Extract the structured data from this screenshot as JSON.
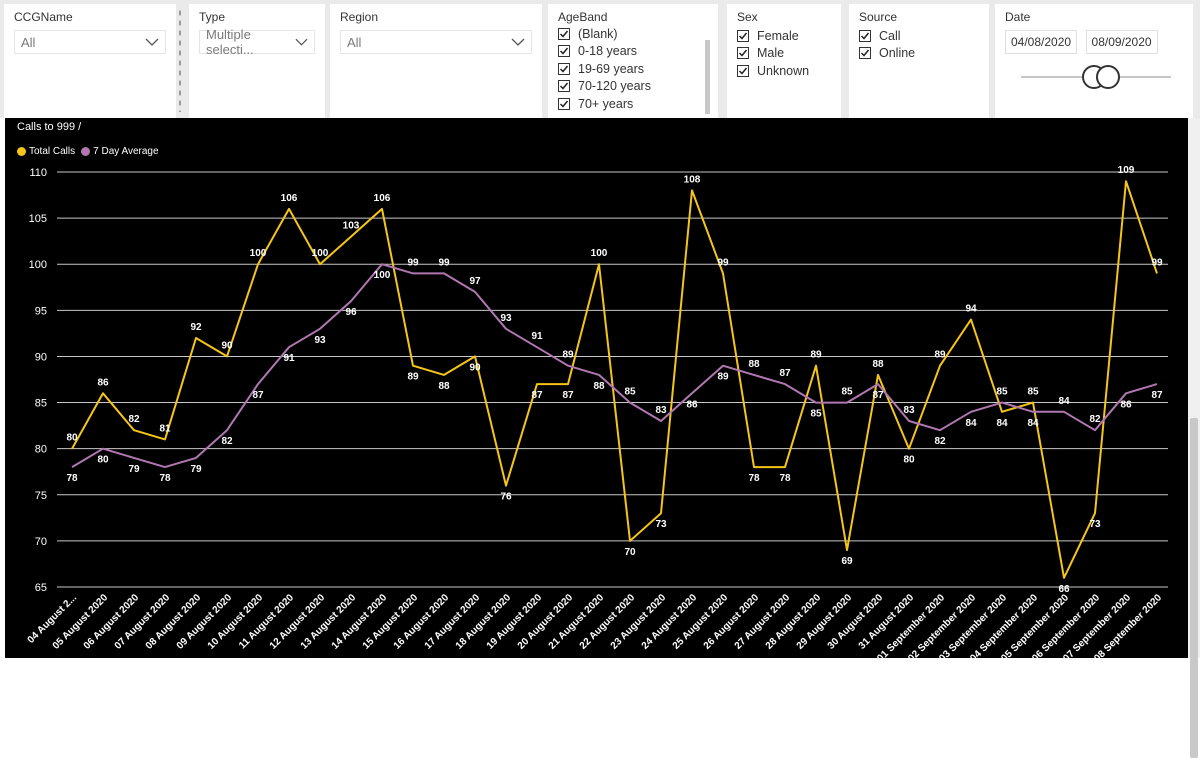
{
  "slicers": {
    "ccg": {
      "title": "CCGName",
      "value": "All"
    },
    "type": {
      "title": "Type",
      "value": "Multiple selecti..."
    },
    "region": {
      "title": "Region",
      "value": "All"
    },
    "ageband": {
      "title": "AgeBand",
      "items": [
        "(Blank)",
        "0-18 years",
        "19-69 years",
        "70-120 years",
        "70+ years"
      ]
    },
    "sex": {
      "title": "Sex",
      "items": [
        "Female",
        "Male",
        "Unknown"
      ]
    },
    "source": {
      "title": "Source",
      "items": [
        "Call",
        "Online"
      ]
    },
    "date": {
      "title": "Date",
      "start": "04/08/2020",
      "end": "08/09/2020"
    }
  },
  "colors": {
    "total": "#f5c518",
    "avg": "#b077b0",
    "grid": "#c8c8c8",
    "axis": "#ffffff"
  },
  "chart_data": {
    "type": "line",
    "title": "Calls to 999 /",
    "xlabel": "",
    "ylabel": "",
    "ylim": [
      65,
      110
    ],
    "yticks": [
      65,
      70,
      75,
      80,
      85,
      90,
      95,
      100,
      105,
      110
    ],
    "grid": true,
    "legend": "top-left",
    "categories": [
      "04 August 2...",
      "05 August 2020",
      "06 August 2020",
      "07 August 2020",
      "08 August 2020",
      "09 August 2020",
      "10 August 2020",
      "11 August 2020",
      "12 August 2020",
      "13 August 2020",
      "14 August 2020",
      "15 August 2020",
      "16 August 2020",
      "17 August 2020",
      "18 August 2020",
      "19 August 2020",
      "20 August 2020",
      "21 August 2020",
      "22 August 2020",
      "23 August 2020",
      "24 August 2020",
      "25 August 2020",
      "26 August 2020",
      "27 August 2020",
      "28 August 2020",
      "29 August 2020",
      "30 August 2020",
      "31 August 2020",
      "01 September 2020",
      "02 September 2020",
      "03 September 2020",
      "04 September 2020",
      "05 September 2020",
      "06 September 2020",
      "07 September 2020",
      "08 September 2020"
    ],
    "series": [
      {
        "name": "Total Calls",
        "values": [
          80,
          86,
          82,
          81,
          92,
          90,
          100,
          106,
          100,
          103,
          106,
          89,
          88,
          90,
          76,
          87,
          87,
          100,
          70,
          73,
          108,
          99,
          78,
          78,
          89,
          69,
          88,
          80,
          89,
          94,
          84,
          85,
          66,
          73,
          109,
          99
        ]
      },
      {
        "name": "7 Day Average",
        "values": [
          78,
          80,
          79,
          78,
          79,
          82,
          87,
          91,
          93,
          96,
          100,
          99,
          99,
          97,
          93,
          91,
          89,
          88,
          85,
          83,
          86,
          89,
          88,
          87,
          85,
          85,
          87,
          83,
          82,
          84,
          85,
          84,
          84,
          82,
          86,
          87
        ]
      }
    ],
    "labels_total": [
      "80",
      "86",
      "82",
      "81",
      "92",
      "90",
      "100",
      "106",
      "100",
      "103",
      "106",
      "89",
      "88",
      "90",
      "76",
      "87",
      "87",
      "100",
      "70",
      "73",
      "108",
      "99",
      "78",
      "78",
      "89",
      "69",
      "88",
      "80",
      "89",
      "94",
      "84",
      "85",
      "66",
      "73",
      "109",
      "99"
    ],
    "labels_avg": [
      "78",
      "80",
      "79",
      "78",
      "79",
      "82",
      "87",
      "91",
      "93",
      "96",
      "100",
      "99",
      "99",
      "97",
      "93",
      "91",
      "89",
      "88",
      "85",
      "83",
      "86",
      "89",
      "88",
      "87",
      "85",
      "85",
      "87",
      "83",
      "82",
      "84",
      "85",
      "84",
      "84",
      "82",
      "86",
      "87"
    ]
  }
}
